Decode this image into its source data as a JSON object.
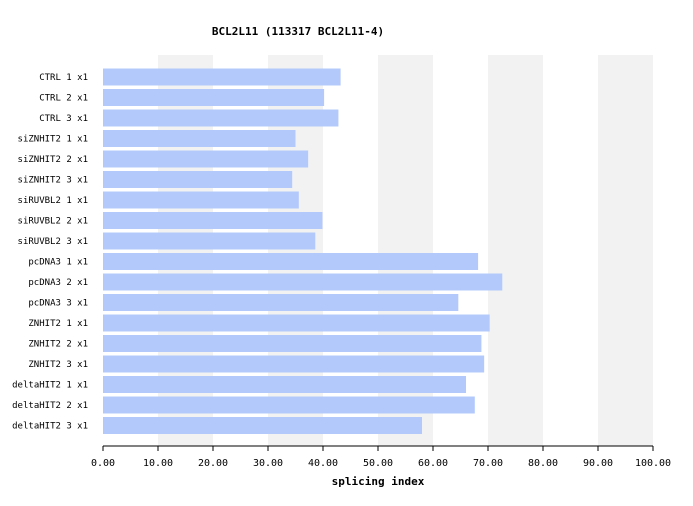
{
  "chart_data": {
    "type": "bar",
    "orientation": "horizontal",
    "title": "BCL2L11 (113317  BCL2L11-4)",
    "xlabel": "splicing index",
    "ylabel": "",
    "xlim": [
      0,
      100
    ],
    "xticks": [
      "0.00",
      "10.00",
      "20.00",
      "30.00",
      "40.00",
      "50.00",
      "60.00",
      "70.00",
      "80.00",
      "90.00",
      "100.00"
    ],
    "grid": "alternating vertical bands",
    "categories": [
      "CTRL 1 x1",
      "CTRL 2 x1",
      "CTRL 3 x1",
      "siZNHIT2 1 x1",
      "siZNHIT2 2 x1",
      "siZNHIT2 3 x1",
      "siRUVBL2 1 x1",
      "siRUVBL2 2 x1",
      "siRUVBL2 3 x1",
      "pcDNA3 1 x1",
      "pcDNA3 2 x1",
      "pcDNA3 3 x1",
      "ZNHIT2 1 x1",
      "ZNHIT2 2 x1",
      "ZNHIT2 3 x1",
      "deltaHIT2 1 x1",
      "deltaHIT2 2 x1",
      "deltaHIT2 3 x1"
    ],
    "values": [
      43.2,
      40.2,
      42.8,
      35.0,
      37.3,
      34.4,
      35.6,
      39.9,
      38.6,
      68.2,
      72.6,
      64.6,
      70.3,
      68.8,
      69.3,
      66.0,
      67.6,
      58.0
    ],
    "colors": {
      "bar": "#b3c8fb",
      "band": "#f2f2f2",
      "axis": "#000000"
    }
  }
}
